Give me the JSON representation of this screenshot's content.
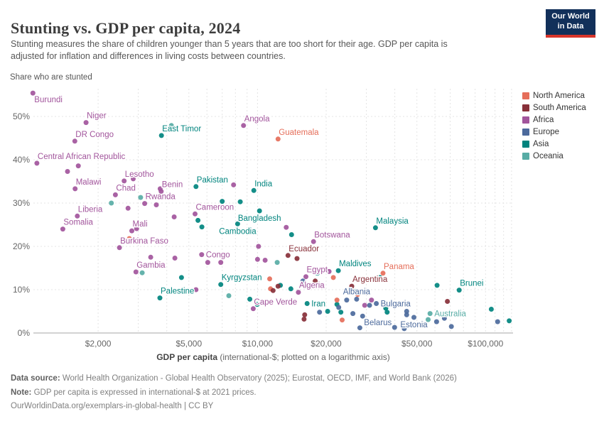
{
  "header": {
    "title": "Stunting vs. GDP per capita, 2024",
    "subtitle_lines": [
      "Stunting measures the share of children younger than 5 years that are too short for their age. GDP per capita is",
      "adjusted for inflation and differences in living costs between countries."
    ],
    "logo": {
      "line1": "Our World",
      "line2": "in Data"
    }
  },
  "footer": {
    "line1_bold": "Data source:",
    "line1_rest": " World Health Organization - Global Health Observatory (2025); Eurostat, OECD, IMF, and World Bank (2026)",
    "line2_bold": "Note:",
    "line2_rest": " GDP per capita is expressed in international-$ at 2021 prices.",
    "line3": "OurWorldinData.org/exemplars-in-global-health | CC BY"
  },
  "chart_data": {
    "type": "scatter",
    "title": "Stunting vs. GDP per capita, 2024",
    "ylabel": "Share who are stunted",
    "xlabel_bold": "GDP per capita",
    "xlabel_rest": " (international-$; plotted on a logarithmic axis)",
    "x_scale": "log",
    "xlim": [
      1040,
      132000
    ],
    "ylim": [
      0,
      56.4
    ],
    "grid": true,
    "legend_position": "right",
    "y_ticks": [
      {
        "v": 0,
        "label": "0%"
      },
      {
        "v": 10,
        "label": "10%"
      },
      {
        "v": 20,
        "label": "20%"
      },
      {
        "v": 30,
        "label": "30%"
      },
      {
        "v": 40,
        "label": "40%"
      },
      {
        "v": 50,
        "label": "50%"
      }
    ],
    "x_ticks": [
      {
        "v": 2000,
        "label": "$2,000"
      },
      {
        "v": 5000,
        "label": "$5,000"
      },
      {
        "v": 10000,
        "label": "$10,000"
      },
      {
        "v": 20000,
        "label": "$20,000"
      },
      {
        "v": 50000,
        "label": "$50,000"
      },
      {
        "v": 100000,
        "label": "$100,000"
      }
    ],
    "x_gridlines_minor": [
      2000,
      3000,
      4000,
      5000,
      6000,
      7000,
      8000,
      9000,
      10000,
      20000,
      30000,
      40000,
      50000,
      60000,
      70000,
      80000,
      90000,
      100000,
      110000,
      120000,
      130000
    ],
    "continent_colors": {
      "North America": "#e56e5a",
      "South America": "#883039",
      "Africa": "#a2559c",
      "Europe": "#4c6a9c",
      "Asia": "#00847e",
      "Oceania": "#58aca5"
    },
    "legend": [
      "North America",
      "South America",
      "Africa",
      "Europe",
      "Asia",
      "Oceania"
    ],
    "points": [
      {
        "country": "Burundi",
        "continent": "Africa",
        "gdp": 1035,
        "stunting": 55.4,
        "label_pos": "below-right"
      },
      {
        "country": "Niger",
        "continent": "Africa",
        "gdp": 1770,
        "stunting": 48.6,
        "label_pos": "above-right"
      },
      {
        "country": "DR Congo",
        "continent": "Africa",
        "gdp": 1580,
        "stunting": 44.3,
        "label_pos": "above-right"
      },
      {
        "country": "Central African Republic",
        "continent": "Africa",
        "gdp": 1077,
        "stunting": 39.2,
        "label_pos": "above-right"
      },
      {
        "country": "Malawi",
        "continent": "Africa",
        "gdp": 1585,
        "stunting": 33.3,
        "label_pos": "above-right"
      },
      {
        "country": "Lesotho",
        "continent": "Africa",
        "gdp": 2600,
        "stunting": 35.1,
        "label_pos": "above-right"
      },
      {
        "country": "Chad",
        "continent": "Africa",
        "gdp": 2380,
        "stunting": 31.9,
        "label_pos": "above-right"
      },
      {
        "country": "Benin",
        "continent": "Africa",
        "gdp": 3780,
        "stunting": 32.7,
        "label_pos": "above-right"
      },
      {
        "country": "Rwanda",
        "continent": "Africa",
        "gdp": 3200,
        "stunting": 29.9,
        "label_pos": "above-right"
      },
      {
        "country": "Liberia",
        "continent": "Africa",
        "gdp": 1620,
        "stunting": 27.0,
        "label_pos": "above-right"
      },
      {
        "country": "Somalia",
        "continent": "Africa",
        "gdp": 1400,
        "stunting": 24.0,
        "label_pos": "above-right"
      },
      {
        "country": "Mali",
        "continent": "Africa",
        "gdp": 2810,
        "stunting": 23.6,
        "label_pos": "above-right"
      },
      {
        "country": "Burkina Faso",
        "continent": "Africa",
        "gdp": 2480,
        "stunting": 19.7,
        "label_pos": "above-right"
      },
      {
        "country": "Gambia",
        "continent": "Africa",
        "gdp": 2930,
        "stunting": 14.1,
        "label_pos": "above-right"
      },
      {
        "country": "East Timor",
        "continent": "Asia",
        "gdp": 3790,
        "stunting": 45.6,
        "label_pos": "above-right"
      },
      {
        "country": "Angola",
        "continent": "Africa",
        "gdp": 8680,
        "stunting": 47.9,
        "label_pos": "above-right"
      },
      {
        "country": "Guatemala",
        "continent": "North America",
        "gdp": 12300,
        "stunting": 44.8,
        "label_pos": "above-right"
      },
      {
        "country": "Pakistan",
        "continent": "Asia",
        "gdp": 5370,
        "stunting": 33.8,
        "label_pos": "above-right"
      },
      {
        "country": "India",
        "continent": "Asia",
        "gdp": 9630,
        "stunting": 32.9,
        "label_pos": "above-right"
      },
      {
        "country": "Cameroon",
        "continent": "Africa",
        "gdp": 5320,
        "stunting": 27.5,
        "label_pos": "above-right"
      },
      {
        "country": "Bangladesh",
        "continent": "Asia",
        "gdp": 10200,
        "stunting": 28.2,
        "label_pos": "below"
      },
      {
        "country": "Cambodia",
        "continent": "Asia",
        "gdp": 8180,
        "stunting": 25.2,
        "label_pos": "below"
      },
      {
        "country": "Congo",
        "continent": "Africa",
        "gdp": 5690,
        "stunting": 18.1,
        "label_pos": "right"
      },
      {
        "country": "Kyrgyzstan",
        "continent": "Asia",
        "gdp": 6900,
        "stunting": 11.2,
        "label_pos": "above-right"
      },
      {
        "country": "Palestine",
        "continent": "Asia",
        "gdp": 3730,
        "stunting": 8.1,
        "label_pos": "above-right"
      },
      {
        "country": "Botswana",
        "continent": "Africa",
        "gdp": 17600,
        "stunting": 21.1,
        "label_pos": "above-right"
      },
      {
        "country": "Ecuador",
        "continent": "South America",
        "gdp": 13600,
        "stunting": 17.9,
        "label_pos": "above-right"
      },
      {
        "country": "Malaysia",
        "continent": "Asia",
        "gdp": 32900,
        "stunting": 24.3,
        "label_pos": "above-right"
      },
      {
        "country": "Maldives",
        "continent": "Asia",
        "gdp": 22600,
        "stunting": 14.4,
        "label_pos": "above-right"
      },
      {
        "country": "Panama",
        "continent": "North America",
        "gdp": 35500,
        "stunting": 13.8,
        "label_pos": "above-right"
      },
      {
        "country": "Egypt",
        "continent": "Africa",
        "gdp": 16300,
        "stunting": 13.0,
        "label_pos": "above-right"
      },
      {
        "country": "Argentina",
        "continent": "South America",
        "gdp": 25900,
        "stunting": 10.8,
        "label_pos": "above-right"
      },
      {
        "country": "Algeria",
        "continent": "Africa",
        "gdp": 15100,
        "stunting": 9.4,
        "label_pos": "above-right"
      },
      {
        "country": "Albania",
        "continent": "Europe",
        "gdp": 27200,
        "stunting": 7.8,
        "label_pos": "above"
      },
      {
        "country": "Iran",
        "continent": "Asia",
        "gdp": 16500,
        "stunting": 6.8,
        "label_pos": "right"
      },
      {
        "country": "Cape Verde",
        "continent": "Africa",
        "gdp": 9580,
        "stunting": 5.6,
        "label_pos": "above-right"
      },
      {
        "country": "Bulgaria",
        "continent": "Europe",
        "gdp": 33200,
        "stunting": 6.8,
        "label_pos": "right"
      },
      {
        "country": "Brunei",
        "continent": "Asia",
        "gdp": 76600,
        "stunting": 9.9,
        "label_pos": "above-right"
      },
      {
        "country": "Australia",
        "continent": "Oceania",
        "gdp": 57100,
        "stunting": 4.5,
        "label_pos": "right"
      },
      {
        "country": "Belarus",
        "continent": "Europe",
        "gdp": 28900,
        "stunting": 3.9,
        "label_pos": "below-right"
      },
      {
        "country": "Estonia",
        "continent": "Europe",
        "gdp": 48500,
        "stunting": 3.6,
        "label_pos": "below"
      },
      {
        "country": "",
        "continent": "Africa",
        "gdp": 1468,
        "stunting": 37.3
      },
      {
        "country": "",
        "continent": "Africa",
        "gdp": 1637,
        "stunting": 38.6
      },
      {
        "country": "",
        "continent": "Africa",
        "gdp": 2850,
        "stunting": 35.6
      },
      {
        "country": "",
        "continent": "Africa",
        "gdp": 3740,
        "stunting": 33.3
      },
      {
        "country": "",
        "continent": "Africa",
        "gdp": 7850,
        "stunting": 34.2
      },
      {
        "country": "",
        "continent": "Africa",
        "gdp": 2705,
        "stunting": 28.8
      },
      {
        "country": "",
        "continent": "Africa",
        "gdp": 2950,
        "stunting": 24.1
      },
      {
        "country": "",
        "continent": "Africa",
        "gdp": 3400,
        "stunting": 17.5
      },
      {
        "country": "",
        "continent": "Africa",
        "gdp": 4340,
        "stunting": 17.3
      },
      {
        "country": "",
        "continent": "Africa",
        "gdp": 6050,
        "stunting": 16.3
      },
      {
        "country": "",
        "continent": "Africa",
        "gdp": 6900,
        "stunting": 16.3
      },
      {
        "country": "",
        "continent": "Africa",
        "gdp": 10100,
        "stunting": 20.0
      },
      {
        "country": "",
        "continent": "Africa",
        "gdp": 10000,
        "stunting": 17.0
      },
      {
        "country": "",
        "continent": "Africa",
        "gdp": 10800,
        "stunting": 16.8
      },
      {
        "country": "",
        "continent": "Africa",
        "gdp": 3600,
        "stunting": 29.6
      },
      {
        "country": "",
        "continent": "Africa",
        "gdp": 4310,
        "stunting": 26.8
      },
      {
        "country": "",
        "continent": "Africa",
        "gdp": 13360,
        "stunting": 24.4
      },
      {
        "country": "",
        "continent": "Africa",
        "gdp": 29500,
        "stunting": 6.4
      },
      {
        "country": "",
        "continent": "Africa",
        "gdp": 31600,
        "stunting": 7.6
      },
      {
        "country": "",
        "continent": "Africa",
        "gdp": 20600,
        "stunting": 14.2
      },
      {
        "country": "",
        "continent": "Africa",
        "gdp": 5370,
        "stunting": 10.0
      },
      {
        "country": "",
        "continent": "Asia",
        "gdp": 7000,
        "stunting": 30.4
      },
      {
        "country": "",
        "continent": "Asia",
        "gdp": 8400,
        "stunting": 30.3
      },
      {
        "country": "",
        "continent": "Asia",
        "gdp": 5480,
        "stunting": 26.0
      },
      {
        "country": "",
        "continent": "Asia",
        "gdp": 5700,
        "stunting": 24.5
      },
      {
        "country": "",
        "continent": "Asia",
        "gdp": 4640,
        "stunting": 12.8
      },
      {
        "country": "",
        "continent": "Asia",
        "gdp": 9250,
        "stunting": 7.8
      },
      {
        "country": "",
        "continent": "Asia",
        "gdp": 9970,
        "stunting": 6.6
      },
      {
        "country": "",
        "continent": "Asia",
        "gdp": 12600,
        "stunting": 11.0
      },
      {
        "country": "",
        "continent": "Asia",
        "gdp": 14000,
        "stunting": 10.2
      },
      {
        "country": "",
        "continent": "Asia",
        "gdp": 14100,
        "stunting": 22.7
      },
      {
        "country": "",
        "continent": "Asia",
        "gdp": 18300,
        "stunting": 13.8
      },
      {
        "country": "",
        "continent": "Asia",
        "gdp": 20300,
        "stunting": 5.0
      },
      {
        "country": "",
        "continent": "Asia",
        "gdp": 22300,
        "stunting": 6.6
      },
      {
        "country": "",
        "continent": "Asia",
        "gdp": 23200,
        "stunting": 4.8
      },
      {
        "country": "",
        "continent": "Asia",
        "gdp": 26800,
        "stunting": 9.6
      },
      {
        "country": "",
        "continent": "Asia",
        "gdp": 36500,
        "stunting": 5.7
      },
      {
        "country": "",
        "continent": "Asia",
        "gdp": 37000,
        "stunting": 4.8
      },
      {
        "country": "",
        "continent": "Asia",
        "gdp": 34400,
        "stunting": 12.8
      },
      {
        "country": "",
        "continent": "Asia",
        "gdp": 61300,
        "stunting": 11.0
      },
      {
        "country": "",
        "continent": "Asia",
        "gdp": 106000,
        "stunting": 5.5
      },
      {
        "country": "",
        "continent": "Asia",
        "gdp": 127000,
        "stunting": 2.8
      },
      {
        "country": "",
        "continent": "Asia",
        "gdp": 54000,
        "stunting": 1.8
      },
      {
        "country": "",
        "continent": "Europe",
        "gdp": 15800,
        "stunting": 12.0
      },
      {
        "country": "",
        "continent": "Europe",
        "gdp": 24600,
        "stunting": 7.6
      },
      {
        "country": "",
        "continent": "Europe",
        "gdp": 18700,
        "stunting": 4.8
      },
      {
        "country": "",
        "continent": "Europe",
        "gdp": 26200,
        "stunting": 4.5
      },
      {
        "country": "",
        "continent": "Europe",
        "gdp": 31000,
        "stunting": 6.4
      },
      {
        "country": "",
        "continent": "Europe",
        "gdp": 22700,
        "stunting": 5.9
      },
      {
        "country": "",
        "continent": "Europe",
        "gdp": 45100,
        "stunting": 5.0
      },
      {
        "country": "",
        "continent": "Europe",
        "gdp": 45100,
        "stunting": 4.2
      },
      {
        "country": "",
        "continent": "Europe",
        "gdp": 53000,
        "stunting": 2.1
      },
      {
        "country": "",
        "continent": "Europe",
        "gdp": 61000,
        "stunting": 2.6
      },
      {
        "country": "",
        "continent": "Europe",
        "gdp": 66000,
        "stunting": 3.4
      },
      {
        "country": "",
        "continent": "Europe",
        "gdp": 63000,
        "stunting": 4.3
      },
      {
        "country": "",
        "continent": "Europe",
        "gdp": 70800,
        "stunting": 1.5
      },
      {
        "country": "",
        "continent": "Europe",
        "gdp": 39900,
        "stunting": 1.3
      },
      {
        "country": "",
        "continent": "Europe",
        "gdp": 44000,
        "stunting": 1.0
      },
      {
        "country": "",
        "continent": "Europe",
        "gdp": 28100,
        "stunting": 1.2
      },
      {
        "country": "",
        "continent": "Europe",
        "gdp": 113000,
        "stunting": 2.6
      },
      {
        "country": "",
        "continent": "North America",
        "gdp": 2740,
        "stunting": 21.8
      },
      {
        "country": "",
        "continent": "North America",
        "gdp": 11400,
        "stunting": 10.2
      },
      {
        "country": "",
        "continent": "North America",
        "gdp": 11300,
        "stunting": 12.5
      },
      {
        "country": "",
        "continent": "North America",
        "gdp": 21500,
        "stunting": 12.8
      },
      {
        "country": "",
        "continent": "North America",
        "gdp": 27500,
        "stunting": 8.9
      },
      {
        "country": "",
        "continent": "North America",
        "gdp": 23500,
        "stunting": 3.0
      },
      {
        "country": "",
        "continent": "North America",
        "gdp": 22300,
        "stunting": 7.6
      },
      {
        "country": "",
        "continent": "South America",
        "gdp": 17900,
        "stunting": 12.0
      },
      {
        "country": "",
        "continent": "South America",
        "gdp": 12300,
        "stunting": 10.8
      },
      {
        "country": "",
        "continent": "South America",
        "gdp": 11700,
        "stunting": 9.8
      },
      {
        "country": "",
        "continent": "South America",
        "gdp": 14900,
        "stunting": 17.2
      },
      {
        "country": "",
        "continent": "South America",
        "gdp": 16100,
        "stunting": 4.2
      },
      {
        "country": "",
        "continent": "South America",
        "gdp": 16000,
        "stunting": 3.2
      },
      {
        "country": "",
        "continent": "South America",
        "gdp": 68000,
        "stunting": 7.3
      },
      {
        "country": "",
        "continent": "Oceania",
        "gdp": 4190,
        "stunting": 47.9
      },
      {
        "country": "",
        "continent": "Oceania",
        "gdp": 3070,
        "stunting": 31.3
      },
      {
        "country": "",
        "continent": "Oceania",
        "gdp": 2285,
        "stunting": 30.0
      },
      {
        "country": "",
        "continent": "Oceania",
        "gdp": 3120,
        "stunting": 13.9
      },
      {
        "country": "",
        "continent": "Oceania",
        "gdp": 7480,
        "stunting": 8.6
      },
      {
        "country": "",
        "continent": "Oceania",
        "gdp": 12200,
        "stunting": 16.3
      },
      {
        "country": "",
        "continent": "Oceania",
        "gdp": 56000,
        "stunting": 3.1
      }
    ]
  }
}
